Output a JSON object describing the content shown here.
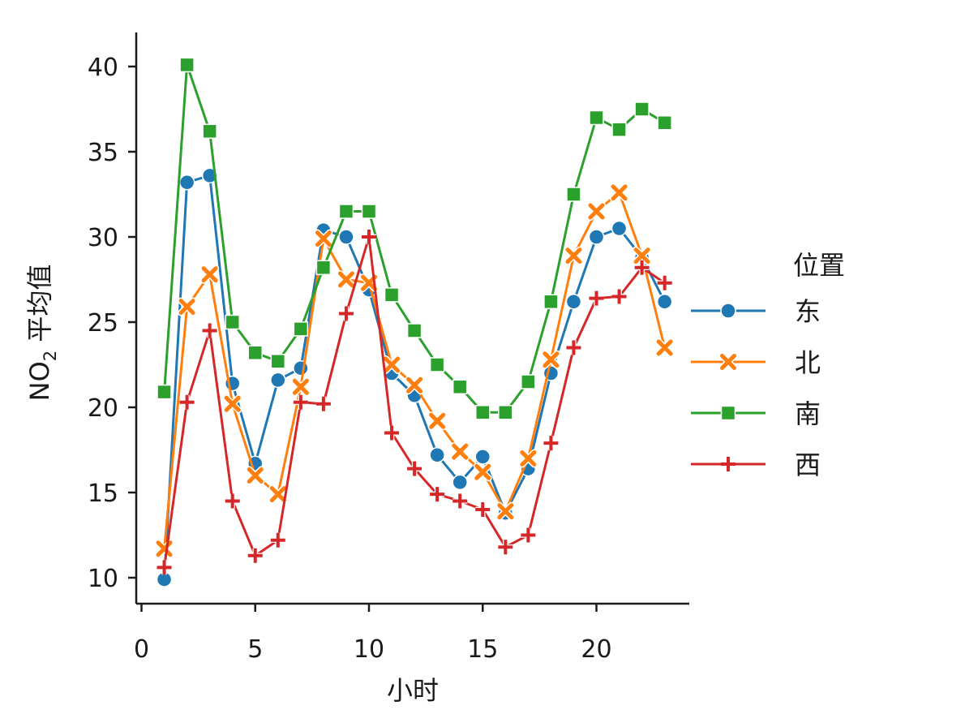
{
  "chart_data": {
    "type": "line",
    "xlabel": "小时",
    "ylabel_main": "NO",
    "ylabel_sub": "2",
    "ylabel_rest": " 平均值",
    "xlim": [
      0,
      24
    ],
    "ylim": [
      9,
      42
    ],
    "xticks": [
      0,
      5,
      10,
      15,
      20
    ],
    "yticks": [
      10,
      15,
      20,
      25,
      30,
      35,
      40
    ],
    "grid": false,
    "legend": {
      "title": "位置",
      "placement": "right"
    },
    "x": [
      1,
      2,
      3,
      4,
      5,
      6,
      7,
      8,
      9,
      10,
      11,
      12,
      13,
      14,
      15,
      16,
      17,
      18,
      19,
      20,
      21,
      22,
      23
    ],
    "series": [
      {
        "name": "东",
        "color": "#1f77b4",
        "marker": "circle",
        "values": [
          9.9,
          33.2,
          33.6,
          21.4,
          16.7,
          21.6,
          22.3,
          30.4,
          30.0,
          26.9,
          22.0,
          20.7,
          17.2,
          15.6,
          17.1,
          13.8,
          16.4,
          22.0,
          26.2,
          30.0,
          30.5,
          28.8,
          26.2
        ]
      },
      {
        "name": "北",
        "color": "#ff7f0e",
        "marker": "x",
        "values": [
          11.7,
          25.9,
          27.8,
          20.2,
          16.0,
          14.9,
          21.2,
          29.9,
          27.5,
          27.3,
          22.5,
          21.3,
          19.2,
          17.4,
          16.2,
          13.9,
          17.0,
          22.8,
          28.9,
          31.5,
          32.6,
          28.9,
          23.5
        ]
      },
      {
        "name": "南",
        "color": "#2ca02c",
        "marker": "square",
        "values": [
          20.9,
          40.1,
          36.2,
          25.0,
          23.2,
          22.7,
          24.6,
          28.2,
          31.5,
          31.5,
          26.6,
          24.5,
          22.5,
          21.2,
          19.7,
          19.7,
          21.5,
          26.2,
          32.5,
          37.0,
          36.3,
          37.5,
          36.7
        ]
      },
      {
        "name": "西",
        "color": "#d62728",
        "marker": "plus",
        "values": [
          10.6,
          20.3,
          24.5,
          14.5,
          11.3,
          12.2,
          20.3,
          20.2,
          25.5,
          30.0,
          18.5,
          16.4,
          14.9,
          14.5,
          14.0,
          11.8,
          12.5,
          17.9,
          23.5,
          26.4,
          26.5,
          28.2,
          27.3
        ]
      }
    ]
  }
}
